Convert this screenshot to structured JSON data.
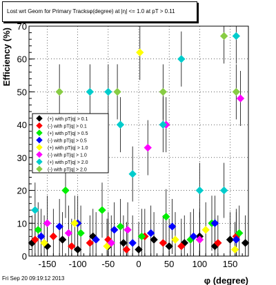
{
  "title": "Lost wrt Geom for Primary Tracksφ(degree) at |η| <= 1.0 at pT > 0.11",
  "footer": "Fri Sep 20 09:19:12 2013",
  "chart_data": {
    "type": "scatter",
    "xlabel": "φ (degree)",
    "ylabel": "Efficiency (%)",
    "xlim": [
      -180,
      180
    ],
    "ylim": [
      0,
      70
    ],
    "xticks": [
      "-150",
      "-100",
      "-50",
      "0",
      "50",
      "100",
      "150"
    ],
    "yticks": [
      "0",
      "10",
      "20",
      "30",
      "40",
      "50",
      "60",
      "70"
    ],
    "grid": true,
    "legend_position": "left-middle",
    "series": [
      {
        "name": "(+) with pT|q| > 0.1",
        "color": "#000000",
        "marker": "diamond",
        "x": [
          -175,
          -150,
          -125,
          -100,
          -75,
          -50,
          -25,
          0,
          25,
          50,
          75,
          100,
          125,
          150,
          175
        ],
        "y": [
          4,
          3,
          5,
          2,
          6,
          3,
          4,
          2,
          5,
          3,
          4,
          6,
          3,
          5,
          4
        ]
      },
      {
        "name": "(-) with pT|q| > 0.1",
        "color": "#ff0000",
        "marker": "diamond",
        "x": [
          -170,
          -140,
          -110,
          -80,
          -50,
          -20,
          10,
          40,
          70,
          100,
          130,
          160
        ],
        "y": [
          5,
          6,
          3,
          4,
          5,
          2,
          6,
          4,
          3,
          5,
          4,
          6
        ]
      },
      {
        "name": "(+) with pT|q| > 0.5",
        "color": "#00ee00",
        "marker": "diamond",
        "x": [
          -165,
          -120,
          -95,
          -60,
          -30,
          5,
          45,
          85,
          120,
          165
        ],
        "y": [
          8,
          20,
          7,
          14,
          9,
          6,
          12,
          5,
          10,
          7
        ]
      },
      {
        "name": "(-) with pT|q| > 0.5",
        "color": "#0000ff",
        "marker": "diamond",
        "x": [
          -160,
          -130,
          -100,
          -70,
          -40,
          -10,
          20,
          55,
          90,
          125,
          160
        ],
        "y": [
          6,
          9,
          10,
          5,
          8,
          4,
          7,
          9,
          6,
          10,
          5
        ]
      },
      {
        "name": "(+) with pT|q| > 1.0",
        "color": "#ffff00",
        "marker": "diamond",
        "x": [
          -155,
          -105,
          -52,
          2,
          60,
          110,
          158
        ],
        "y": [
          4,
          10,
          3,
          62,
          5,
          8,
          2
        ]
      },
      {
        "name": "(-) with pT|q| > 1.0",
        "color": "#ff00ff",
        "marker": "diamond",
        "x": [
          -150,
          -115,
          -45,
          -18,
          15,
          45,
          100,
          167
        ],
        "y": [
          10,
          7,
          4,
          8,
          33,
          40,
          5,
          48
        ]
      },
      {
        "name": "(+) with pT|q| > 2.0",
        "color": "#00cccc",
        "marker": "diamond",
        "x": [
          -170,
          -80,
          -50,
          -30,
          -10,
          40,
          70,
          100,
          140,
          160
        ],
        "y": [
          14,
          50,
          50,
          40,
          25,
          40,
          60,
          20,
          20,
          67
        ]
      },
      {
        "name": "(-) with pT|q| > 2.0",
        "color": "#88cc44",
        "marker": "diamond",
        "x": [
          -130,
          -35,
          40,
          140,
          160
        ],
        "y": [
          50,
          50,
          50,
          67,
          50
        ]
      }
    ]
  }
}
